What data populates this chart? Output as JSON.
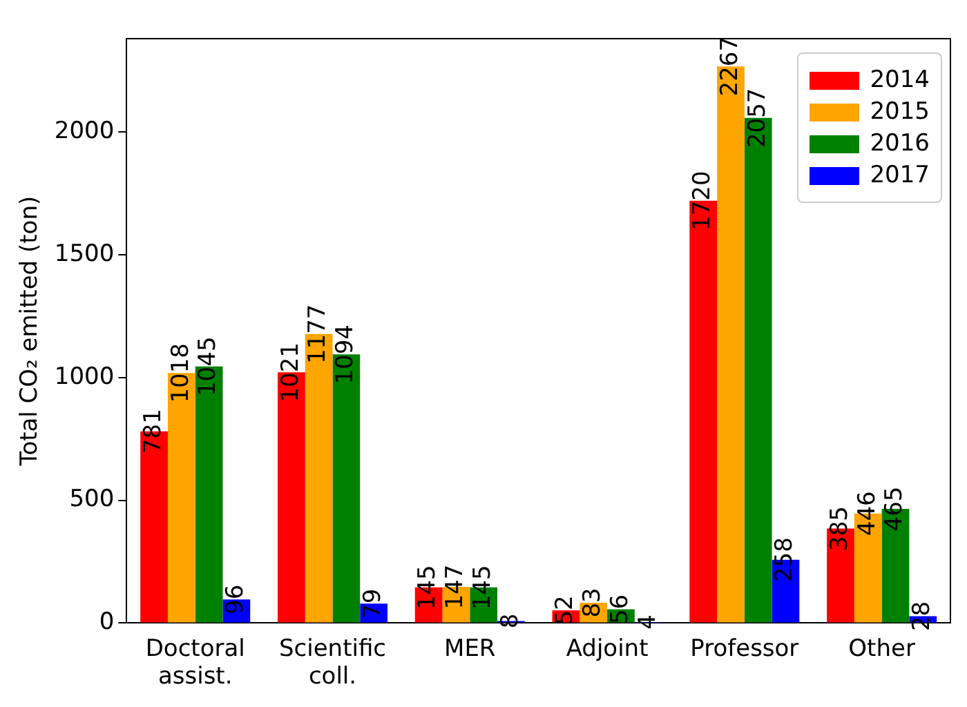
{
  "chart_data": {
    "type": "bar",
    "ylabel": "Total CO₂ emitted (ton)",
    "categories": [
      "Doctoral assist.",
      "Scientific coll.",
      "MER",
      "Adjoint",
      "Professor",
      "Other"
    ],
    "series": [
      {
        "name": "2014",
        "color": "#ff0000",
        "values": [
          781,
          1021,
          145,
          52,
          1720,
          385
        ]
      },
      {
        "name": "2015",
        "color": "#ffa500",
        "values": [
          1018,
          1177,
          147,
          83,
          2267,
          446
        ]
      },
      {
        "name": "2016",
        "color": "#008000",
        "values": [
          1045,
          1094,
          145,
          56,
          2057,
          465
        ]
      },
      {
        "name": "2017",
        "color": "#0000ff",
        "values": [
          96,
          79,
          8,
          4,
          258,
          28
        ]
      }
    ],
    "ylim": [
      0,
      2380
    ],
    "yticks": [
      0,
      500,
      1000,
      1500,
      2000
    ],
    "grid": false,
    "legend": "top right",
    "data_labels": true
  }
}
